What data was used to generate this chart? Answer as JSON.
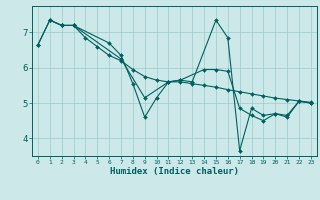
{
  "xlabel": "Humidex (Indice chaleur)",
  "ylabel": "",
  "xlim": [
    -0.5,
    23.5
  ],
  "ylim": [
    3.5,
    7.75
  ],
  "yticks": [
    4,
    5,
    6,
    7
  ],
  "xticks": [
    0,
    1,
    2,
    3,
    4,
    5,
    6,
    7,
    8,
    9,
    10,
    11,
    12,
    13,
    14,
    15,
    16,
    17,
    18,
    19,
    20,
    21,
    22,
    23
  ],
  "bg_color": "#cce8e8",
  "line_color": "#006060",
  "grid_color": "#99cccc",
  "lines": [
    {
      "x": [
        0,
        1,
        2,
        3,
        4,
        5,
        6,
        7,
        8,
        9,
        10,
        11,
        12,
        13,
        14,
        15,
        16,
        17,
        18,
        19,
        20,
        21,
        22,
        23
      ],
      "y": [
        6.65,
        7.35,
        7.2,
        7.2,
        6.85,
        6.6,
        6.35,
        6.2,
        5.95,
        5.75,
        5.65,
        5.6,
        5.6,
        5.55,
        5.5,
        5.45,
        5.38,
        5.32,
        5.26,
        5.2,
        5.14,
        5.1,
        5.06,
        5.02
      ]
    },
    {
      "x": [
        1,
        2,
        3,
        6,
        7,
        8,
        9,
        10,
        11,
        12,
        13,
        15,
        16,
        17,
        18,
        19,
        20,
        21,
        22,
        23
      ],
      "y": [
        7.35,
        7.2,
        7.2,
        6.7,
        6.35,
        5.55,
        4.6,
        5.15,
        5.6,
        5.65,
        5.6,
        7.35,
        6.85,
        3.65,
        4.85,
        4.65,
        4.7,
        4.6,
        5.05,
        5.0
      ]
    },
    {
      "x": [
        0,
        1,
        2,
        3,
        7,
        9,
        11,
        12,
        14,
        15,
        16,
        17,
        18,
        19,
        20,
        21,
        22,
        23
      ],
      "y": [
        6.65,
        7.35,
        7.2,
        7.2,
        6.25,
        5.15,
        5.6,
        5.65,
        5.95,
        5.95,
        5.9,
        4.85,
        4.65,
        4.5,
        4.7,
        4.65,
        5.05,
        5.0
      ]
    }
  ]
}
